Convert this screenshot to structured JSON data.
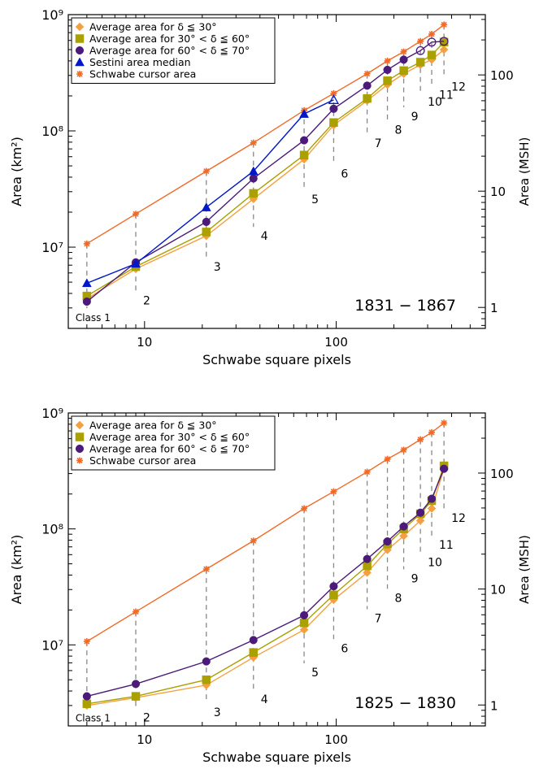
{
  "chart_data": [
    {
      "type": "line",
      "x_scale": "log",
      "y_scale": "log",
      "xlim": [
        4,
        600
      ],
      "ylim": [
        2000000,
        1000000000
      ],
      "y2lim_msh": [
        0.66,
        330
      ],
      "xlabel": "Schwabe square pixels",
      "ylabel": "Area (km²)",
      "y2label": "Area (MSH)",
      "period_label": "1831 − 1867",
      "x_ticks": [
        10,
        100
      ],
      "y_ticks": [
        10000000,
        100000000,
        1000000000
      ],
      "y_tick_labels": [
        "10⁷",
        "10⁸",
        "10⁹"
      ],
      "y2_ticks": [
        1,
        10,
        100
      ],
      "grid": false,
      "legend_position": "top-left",
      "classes": [
        {
          "x": 5,
          "label": "Class 1",
          "y_label": 2800000
        },
        {
          "x": 9,
          "label": "2",
          "y_label": 3900000
        },
        {
          "x": 21,
          "label": "3",
          "y_label": 7600000
        },
        {
          "x": 37,
          "label": "4",
          "y_label": 14000000
        },
        {
          "x": 68,
          "label": "5",
          "y_label": 29000000
        },
        {
          "x": 97,
          "label": "6",
          "y_label": 48000000
        },
        {
          "x": 145,
          "label": "7",
          "y_label": 88000000
        },
        {
          "x": 185,
          "label": "8",
          "y_label": 115000000
        },
        {
          "x": 225,
          "label": "9",
          "y_label": 150000000
        },
        {
          "x": 275,
          "label": "10",
          "y_label": 200000000
        },
        {
          "x": 315,
          "label": "11",
          "y_label": 230000000
        },
        {
          "x": 365,
          "label": "12",
          "y_label": 270000000
        }
      ],
      "series": [
        {
          "name": "Average area for δ ≦ 30°",
          "color": "#f5a040",
          "marker": "diamond",
          "x": [
            5,
            9,
            21,
            37,
            68,
            97,
            145,
            185,
            225,
            275,
            315,
            365
          ],
          "y": [
            3600000,
            6500000,
            12500000,
            26000000,
            57000000,
            112000000,
            182000000,
            250000000,
            310000000,
            370000000,
            410000000,
            500000000
          ]
        },
        {
          "name": "Average area for 30° < δ ≦ 60°",
          "color": "#aaa000",
          "marker": "square",
          "x": [
            5,
            9,
            21,
            37,
            68,
            97,
            145,
            185,
            225,
            275,
            315,
            365
          ],
          "y": [
            3800000,
            6800000,
            13500000,
            29000000,
            62000000,
            118000000,
            190000000,
            270000000,
            330000000,
            390000000,
            450000000,
            580000000
          ]
        },
        {
          "name": "Average area for 60° < δ ≦ 70°",
          "color": "#4b1a7a",
          "marker": "circle",
          "x": [
            5,
            9,
            21,
            37,
            68,
            97,
            145,
            185,
            225,
            275,
            315,
            365
          ],
          "y": [
            3400000,
            7400000,
            16500000,
            39000000,
            83000000,
            155000000,
            245000000,
            335000000,
            410000000,
            490000000,
            580000000,
            590000000
          ],
          "open_from_index": 9
        },
        {
          "name": "Sestini area median",
          "color": "#0018c8",
          "marker": "triangle",
          "x": [
            5,
            9,
            21,
            37,
            68,
            97
          ],
          "y": [
            4900000,
            7200000,
            22000000,
            45000000,
            140000000,
            185000000
          ],
          "open_from_index": 5
        },
        {
          "name": "Schwabe cursor area",
          "color": "#f06a28",
          "marker": "star",
          "x": [
            5,
            9,
            21,
            37,
            68,
            97,
            145,
            185,
            225,
            275,
            315,
            365
          ],
          "y": [
            10700000,
            19300000,
            45000000,
            79000000,
            150000000,
            210000000,
            310000000,
            400000000,
            480000000,
            590000000,
            680000000,
            820000000
          ]
        }
      ]
    },
    {
      "type": "line",
      "x_scale": "log",
      "y_scale": "log",
      "xlim": [
        4,
        600
      ],
      "ylim": [
        2000000,
        1000000000
      ],
      "y2lim_msh": [
        0.66,
        330
      ],
      "xlabel": "Schwabe square pixels",
      "ylabel": "Area (km²)",
      "y2label": "Area (MSH)",
      "period_label": "1825 − 1830",
      "x_ticks": [
        10,
        100
      ],
      "y_ticks": [
        10000000,
        100000000,
        1000000000
      ],
      "y_tick_labels": [
        "10⁷",
        "10⁸",
        "10⁹"
      ],
      "y2_ticks": [
        1,
        10,
        100
      ],
      "grid": false,
      "legend_position": "top-left",
      "classes": [
        {
          "x": 5,
          "label": "Class 1",
          "y_label": 2650000
        },
        {
          "x": 9,
          "label": "2",
          "y_label": 2650000
        },
        {
          "x": 21,
          "label": "3",
          "y_label": 2950000
        },
        {
          "x": 37,
          "label": "4",
          "y_label": 3800000
        },
        {
          "x": 68,
          "label": "5",
          "y_label": 6500000
        },
        {
          "x": 97,
          "label": "6",
          "y_label": 10500000
        },
        {
          "x": 145,
          "label": "7",
          "y_label": 19000000
        },
        {
          "x": 185,
          "label": "8",
          "y_label": 28500000
        },
        {
          "x": 225,
          "label": "9",
          "y_label": 42000000
        },
        {
          "x": 275,
          "label": "10",
          "y_label": 58000000
        },
        {
          "x": 315,
          "label": "11",
          "y_label": 82000000
        },
        {
          "x": 365,
          "label": "12",
          "y_label": 140000000
        }
      ],
      "series": [
        {
          "name": "Average area for δ ≦ 30°",
          "color": "#f5a040",
          "marker": "diamond",
          "x": [
            5,
            9,
            21,
            37,
            68,
            97,
            145,
            185,
            225,
            275,
            315,
            365
          ],
          "y": [
            3000000,
            3500000,
            4500000,
            7800000,
            13500000,
            24500000,
            42000000,
            66000000,
            87000000,
            118000000,
            150000000,
            330000000
          ]
        },
        {
          "name": "Average area for 30° < δ ≦ 60°",
          "color": "#aaa000",
          "marker": "square",
          "x": [
            5,
            9,
            21,
            37,
            68,
            97,
            145,
            185,
            225,
            275,
            315,
            365
          ],
          "y": [
            3100000,
            3600000,
            5000000,
            8600000,
            15500000,
            27000000,
            48000000,
            74000000,
            100000000,
            135000000,
            175000000,
            350000000
          ]
        },
        {
          "name": "Average area for 60° < δ ≦ 70°",
          "color": "#4b1a7a",
          "marker": "circle",
          "x": [
            5,
            9,
            21,
            37,
            68,
            97,
            145,
            185,
            225,
            275,
            315,
            365
          ],
          "y": [
            3600000,
            4600000,
            7200000,
            11000000,
            18000000,
            32000000,
            55000000,
            78000000,
            105000000,
            138000000,
            182000000,
            330000000
          ]
        },
        {
          "name": "Schwabe cursor area",
          "color": "#f06a28",
          "marker": "star",
          "x": [
            5,
            9,
            21,
            37,
            68,
            97,
            145,
            185,
            225,
            275,
            315,
            365
          ],
          "y": [
            10700000,
            19300000,
            45000000,
            79000000,
            150000000,
            210000000,
            310000000,
            400000000,
            480000000,
            590000000,
            680000000,
            820000000
          ]
        }
      ]
    }
  ]
}
